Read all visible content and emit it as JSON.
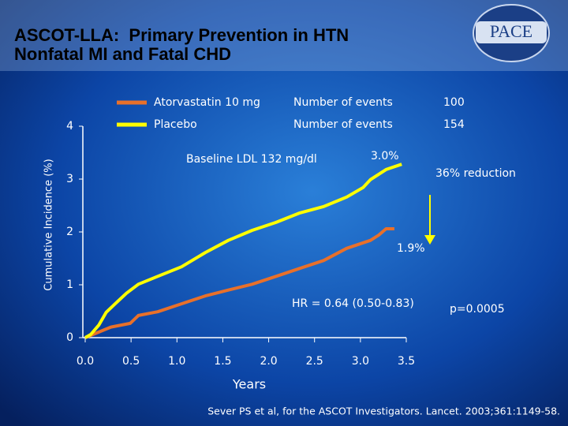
{
  "chart_data": {
    "type": "line",
    "title": [
      "ASCOT-LLA:  Primary Prevention in HTN",
      "Nonfatal MI and Fatal CHD"
    ],
    "logo": "PACE",
    "y_label": "Cumulative Incidence (%)",
    "x_label": "Years",
    "xlim": [
      0,
      3.5
    ],
    "xticks": [
      {
        "value": 0,
        "label": "0.0"
      },
      0.5,
      {
        "value": 1,
        "label": "1.0"
      },
      1.5,
      {
        "value": 2,
        "label": "2.0"
      },
      2.5,
      {
        "value": 3,
        "label": "3.0"
      },
      3.5
    ],
    "ylim": [
      0,
      4
    ],
    "yticks": [
      0,
      1,
      2,
      3,
      4
    ],
    "series": [
      {
        "name": "Atorvastatin 10 mg",
        "color": "#e8702a",
        "events_label": "Number of events",
        "events": 100,
        "x": [
          0,
          0.28,
          0.49,
          0.58,
          0.79,
          1.05,
          1.31,
          1.56,
          1.82,
          2.08,
          2.34,
          2.6,
          2.85,
          3.11,
          3.2,
          3.28,
          3.37
        ],
        "values": [
          0,
          0.2,
          0.27,
          0.42,
          0.49,
          0.64,
          0.79,
          0.9,
          1.01,
          1.16,
          1.31,
          1.46,
          1.69,
          1.84,
          1.94,
          2.06,
          2.06
        ]
      },
      {
        "name": "Placebo",
        "color": "#ffff00",
        "events_label": "Number of events",
        "events": 154,
        "x": [
          0,
          0.06,
          0.15,
          0.23,
          0.32,
          0.45,
          0.58,
          0.79,
          1.05,
          1.31,
          1.56,
          1.82,
          2.08,
          2.34,
          2.6,
          2.85,
          3.03,
          3.11,
          3.28,
          3.45
        ],
        "values": [
          0,
          0.06,
          0.24,
          0.48,
          0.63,
          0.84,
          1.01,
          1.16,
          1.34,
          1.61,
          1.84,
          2.03,
          2.18,
          2.36,
          2.48,
          2.66,
          2.84,
          2.99,
          3.18,
          3.28
        ]
      }
    ],
    "annotations": [
      "Baseline LDL 132 mg/dl",
      "3.0%",
      "36% reduction",
      "1.9%",
      "HR = 0.64 (0.50-0.83)",
      "p=0.0005"
    ],
    "source": "Sever PS et al, for the ASCOT Investigators. Lancet. 2003;361:1149-58."
  }
}
